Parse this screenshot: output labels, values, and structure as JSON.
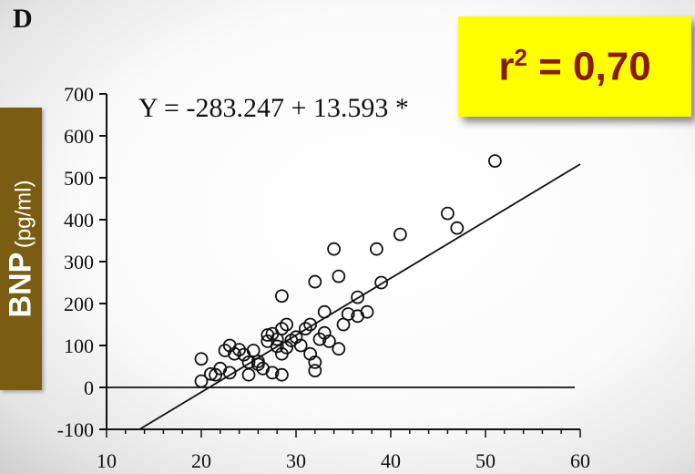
{
  "panel_label": "D",
  "r2": {
    "prefix": "r",
    "exponent": "2",
    "rest": " = 0,70"
  },
  "ylabel": {
    "main": "BNP",
    "unit": "(pg/ml)"
  },
  "colors": {
    "highlight_box": "#ffff00",
    "r2_text": "#8a1a00",
    "ylabel_box": "#7a5c12",
    "ylabel_text": "#ffffff",
    "ink": "#111111"
  },
  "chart_data": {
    "type": "scatter",
    "title": "",
    "xlabel": "",
    "ylabel": "BNP (pg/ml)",
    "xlim": [
      10,
      60
    ],
    "ylim": [
      -100,
      700
    ],
    "x_ticks": [
      10,
      20,
      30,
      40,
      50,
      60
    ],
    "y_ticks": [
      -100,
      0,
      100,
      200,
      300,
      400,
      500,
      600,
      700
    ],
    "equation": "Y = -283.247 + 13.593 *",
    "regression": {
      "intercept": -283.247,
      "slope": 13.593,
      "x_range": [
        13.5,
        60
      ]
    },
    "reference_line_y": 0,
    "grid": false,
    "points": [
      [
        20,
        68
      ],
      [
        20,
        15
      ],
      [
        21,
        32
      ],
      [
        21.5,
        30
      ],
      [
        22,
        45
      ],
      [
        22.5,
        88
      ],
      [
        23,
        100
      ],
      [
        23,
        35
      ],
      [
        23.5,
        80
      ],
      [
        24,
        90
      ],
      [
        24.5,
        78
      ],
      [
        25,
        60
      ],
      [
        25,
        30
      ],
      [
        25.5,
        88
      ],
      [
        26,
        55
      ],
      [
        26.5,
        45
      ],
      [
        27,
        110
      ],
      [
        27,
        125
      ],
      [
        27.5,
        128
      ],
      [
        28,
        115
      ],
      [
        28,
        98
      ],
      [
        28.5,
        80
      ],
      [
        28.5,
        140
      ],
      [
        29,
        150
      ],
      [
        29,
        95
      ],
      [
        29.5,
        112
      ],
      [
        27.5,
        35
      ],
      [
        28.5,
        30
      ],
      [
        26,
        62
      ],
      [
        28.5,
        218
      ],
      [
        30,
        120
      ],
      [
        30.5,
        100
      ],
      [
        31,
        140
      ],
      [
        31.5,
        150
      ],
      [
        31.5,
        80
      ],
      [
        32,
        60
      ],
      [
        32,
        40
      ],
      [
        32.5,
        115
      ],
      [
        32,
        252
      ],
      [
        33,
        130
      ],
      [
        33,
        180
      ],
      [
        33.5,
        110
      ],
      [
        34,
        330
      ],
      [
        34.5,
        265
      ],
      [
        34.5,
        92
      ],
      [
        35,
        150
      ],
      [
        35.5,
        175
      ],
      [
        36.5,
        170
      ],
      [
        36.5,
        215
      ],
      [
        37.5,
        180
      ],
      [
        38.5,
        330
      ],
      [
        39,
        250
      ],
      [
        41,
        365
      ],
      [
        46,
        415
      ],
      [
        47,
        380
      ],
      [
        51,
        540
      ]
    ]
  }
}
